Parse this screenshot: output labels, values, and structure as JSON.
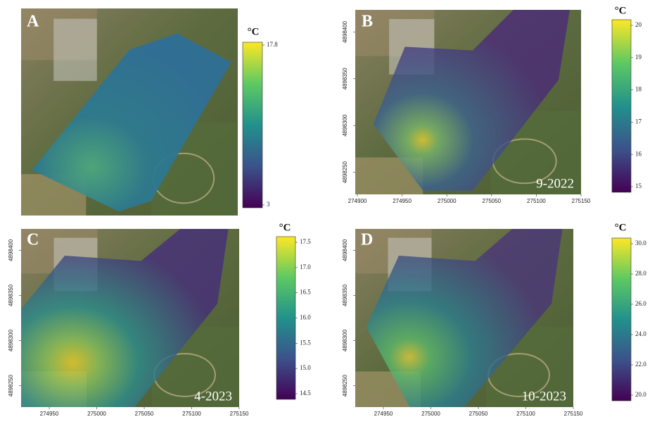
{
  "panels": [
    {
      "label": "A",
      "colorbar": {
        "unit": "°C",
        "ticks": [
          "17.8",
          "3"
        ]
      }
    },
    {
      "label": "B",
      "date": "9-2022",
      "colorbar": {
        "unit": "°C",
        "ticks": [
          "20",
          "19",
          "18",
          "17",
          "16",
          "15"
        ]
      },
      "xticks": [
        "274900",
        "274950",
        "275000",
        "275050",
        "275100",
        "275150"
      ],
      "yticks": [
        "4898400",
        "4898350",
        "4898300",
        "4898250"
      ]
    },
    {
      "label": "C",
      "date": "4-2023",
      "colorbar": {
        "unit": "°C",
        "ticks": [
          "17.5",
          "17.0",
          "16.5",
          "16.0",
          "15.5",
          "15.0",
          "14.5"
        ]
      },
      "xticks": [
        "274950",
        "275000",
        "275050",
        "275100",
        "275150"
      ],
      "yticks": [
        "4898400",
        "4898350",
        "4898300",
        "4898250"
      ]
    },
    {
      "label": "D",
      "date": "10-2023",
      "colorbar": {
        "unit": "°C",
        "ticks": [
          "30.0",
          "28.0",
          "26.0",
          "24.0",
          "22.0",
          "20.0"
        ]
      },
      "xticks": [
        "274950",
        "275000",
        "275050",
        "275100",
        "275150"
      ],
      "yticks": [
        "4898400",
        "4898350",
        "4898300",
        "4898250"
      ]
    }
  ]
}
